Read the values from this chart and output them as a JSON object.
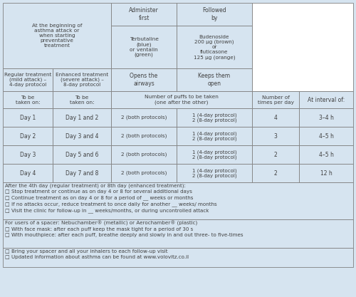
{
  "bg_color": "#d6e4f0",
  "border_color": "#808080",
  "text_color": "#404040",
  "figsize": [
    5.0,
    4.17
  ],
  "dpi": 100,
  "header1_left": "At the beginning of\nasthma attack or\nwhen starting\npreventative\ntreatment",
  "header1_administer": "Administer\nfirst",
  "header1_followed": "Followed\nby",
  "header2_terb": "Terbutaline\n(blue)\nor ventalin\n(green)",
  "header2_bud": "Budenoside\n200 µg (brown)\nor\nfluticasone\n125 µg (orange)",
  "header3_regular": "Regular treatment\n(mild attack) –\n4-day protocol",
  "header3_enhanced": "Enhanced treatment\n(severe attack) –\n8-day protocol",
  "header3_opens": "Opens the\nairways",
  "header3_keeps": "Keeps them\nopen",
  "header4_col1": "To be\ntaken on:",
  "header4_col2": "To be\ntaken on:",
  "header4_puffs": "Number of puffs to be taken\n(one after the other)",
  "header4_times": "Number of\ntimes per day",
  "header4_interval": "At interval of:",
  "rows": [
    [
      "Day 1",
      "Day 1 and 2",
      "2 (both protocols)",
      "1 (4-day protocol)\n2 (8-day protocol)",
      "4",
      "3–4 h"
    ],
    [
      "Day 2",
      "Day 3 and 4",
      "2 (both protocols)",
      "1 (4-day protocol)\n2 (8-day protocol)",
      "3",
      "4–5 h"
    ],
    [
      "Day 3",
      "Day 5 and 6",
      "2 (both protocols)",
      "1 (4-day protocol)\n2 (8-day protocol)",
      "2",
      "4–5 h"
    ],
    [
      "Day 4",
      "Day 7 and 8",
      "2 (both protocols)",
      "1 (4-day protocol)\n2 (8-day protocol)",
      "2",
      "12 h"
    ]
  ],
  "footer1_title": "After the 4th day (regular treatment) or 8th day (enhanced treatment):",
  "footer1_lines": [
    "□ Stop treatment or continue as on day 4 or 8 for several additional days",
    "□ Continue treatment as on day 4 or 8 for a period of __ weeks or months",
    "□ If no attacks occur, reduce treatment to once daily for another __ weeks/ months",
    "□ Visit the clinic for follow-up in __ weeks/months, or during uncontrolled attack"
  ],
  "footer2_title": "For users of a spacer: Nebuchamber® (metallic) or Aerochamber® (plastic)",
  "footer2_lines": [
    "□ With face mask: after each puff keep the mask tight for a period of 30 s",
    "□ With mouthpiece: after each puff, breathe deeply and slowly in and out three- to five-times"
  ],
  "footer3_lines": [
    "□ Bring your spacer and all your inhalers to each follow-up visit",
    "□ Updated information about asthma can be found at www.volovitz.co.il"
  ]
}
